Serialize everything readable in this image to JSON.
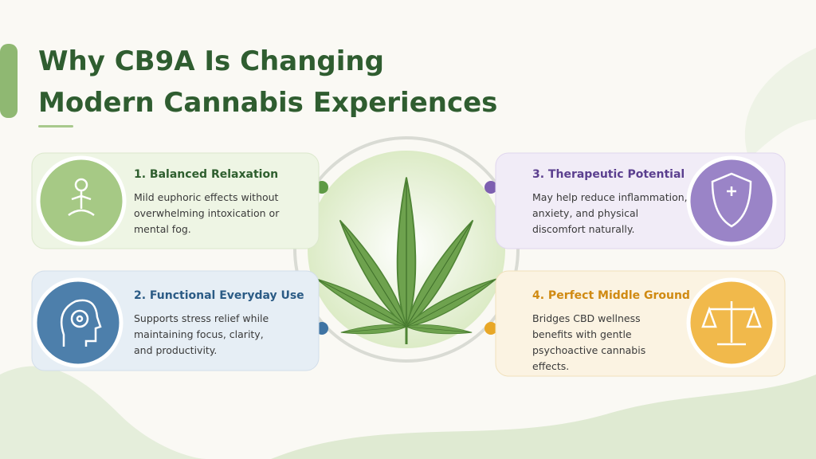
{
  "title": [
    "Why CB9A Is Changing",
    "Modern Cannabis Experiences"
  ],
  "cards": [
    {
      "heading": "1. Balanced Relaxation",
      "lines": [
        "Mild euphoric effects without",
        "overwhelming intoxication or",
        "mental fog."
      ]
    },
    {
      "heading": "2. Functional Everyday Use",
      "lines": [
        "Supports stress relief while",
        "maintaining focus, clarity,",
        "and productivity."
      ]
    },
    {
      "heading": "3. Therapeutic Potential",
      "lines": [
        "May help reduce inflammation,",
        "anxiety, and physical",
        "discomfort naturally."
      ]
    },
    {
      "heading": "4. Perfect Middle Ground",
      "lines": [
        "Bridges CBD wellness",
        "benefits with gentle",
        "psychoactive cannabis",
        "effects."
      ]
    }
  ]
}
